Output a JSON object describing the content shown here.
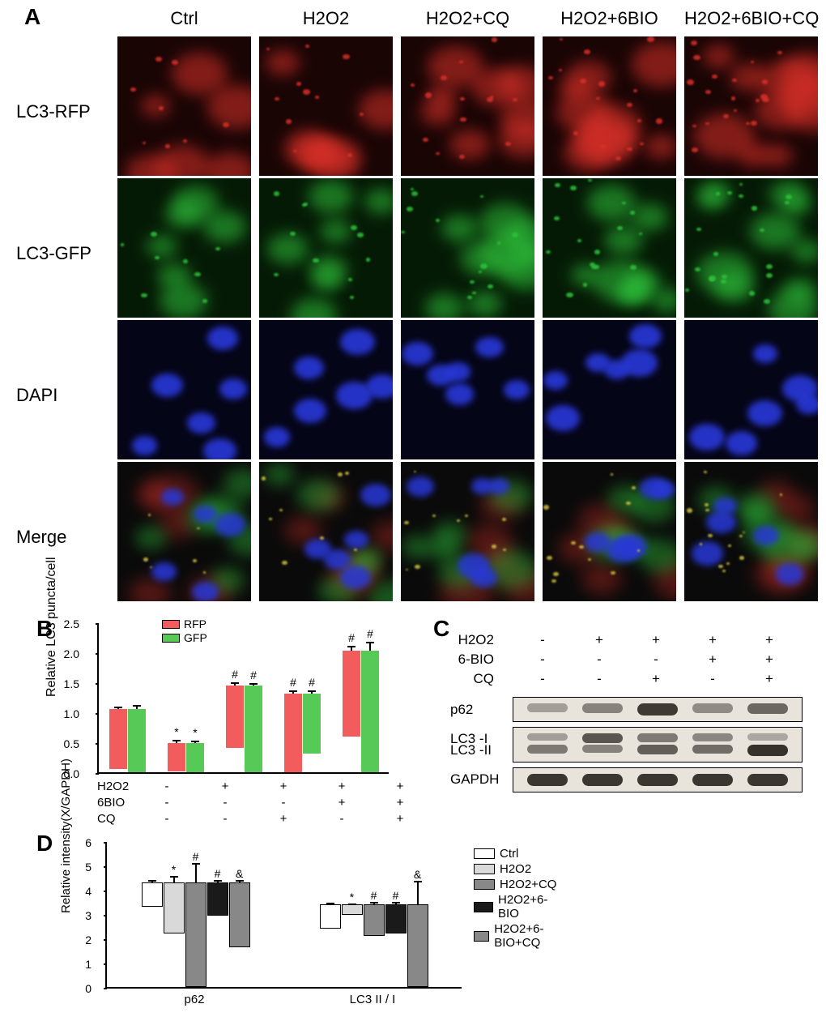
{
  "panelA": {
    "label": "A",
    "columns": [
      "Ctrl",
      "H2O2",
      "H2O2+CQ",
      "H2O2+6BIO",
      "H2O2+6BIO+CQ"
    ],
    "rows": [
      "LC3-RFP",
      "LC3-GFP",
      "DAPI",
      "Merge"
    ],
    "colors": {
      "rfp_stain": "#d83028",
      "gfp_stain": "#2ec23a",
      "dapi_stain": "#2838d8",
      "background_rfp": "#1a0505",
      "background_gfp": "#051a05",
      "background_dapi": "#050518",
      "background_merge": "#0a0a0a"
    }
  },
  "panelB": {
    "label": "B",
    "ylabel": "Relative LC3 puncta/cell",
    "ylim": [
      0,
      2.5
    ],
    "ytick_step": 0.5,
    "yticks": [
      "0.0",
      "0.5",
      "1.0",
      "1.5",
      "2.0",
      "2.5"
    ],
    "series": [
      {
        "name": "RFP",
        "color": "#f25c5c"
      },
      {
        "name": "GFP",
        "color": "#57c957"
      }
    ],
    "groups": [
      {
        "rfp": 1.0,
        "rfp_err": 0.05,
        "rfp_sig": "",
        "gfp": 1.05,
        "gfp_err": 0.07,
        "gfp_sig": ""
      },
      {
        "rfp": 0.46,
        "rfp_err": 0.06,
        "rfp_sig": "*",
        "gfp": 0.48,
        "gfp_err": 0.05,
        "gfp_sig": "*"
      },
      {
        "rfp": 1.03,
        "rfp_err": 0.06,
        "rfp_sig": "#",
        "gfp": 1.44,
        "gfp_err": 0.05,
        "gfp_sig": "#"
      },
      {
        "rfp": 1.31,
        "rfp_err": 0.06,
        "rfp_sig": "#",
        "gfp": 1.0,
        "gfp_err": 0.05,
        "gfp_sig": "#"
      },
      {
        "rfp": 1.44,
        "rfp_err": 0.08,
        "rfp_sig": "#",
        "gfp": 2.03,
        "gfp_err": 0.14,
        "gfp_sig": "#"
      }
    ],
    "xtable": {
      "rows": [
        "H2O2",
        "6BIO",
        "CQ"
      ],
      "cells": [
        [
          "-",
          "+",
          "+",
          "+",
          "+"
        ],
        [
          "-",
          "-",
          "-",
          "+",
          "+"
        ],
        [
          "-",
          "-",
          "+",
          "-",
          "+"
        ]
      ]
    }
  },
  "panelC": {
    "label": "C",
    "header_rows": [
      "H2O2",
      "6-BIO",
      "CQ"
    ],
    "header_cells": [
      [
        "-",
        "+",
        "+",
        "+",
        "+"
      ],
      [
        "-",
        "-",
        "-",
        "+",
        "+"
      ],
      [
        "-",
        "-",
        "+",
        "-",
        "+"
      ]
    ],
    "blots": [
      {
        "label": "p62",
        "intensities": [
          0.35,
          0.5,
          0.9,
          0.45,
          0.65
        ],
        "type": "single"
      },
      {
        "labels": [
          "LC3 -I",
          "LC3 -II"
        ],
        "intensities_top": [
          0.35,
          0.75,
          0.55,
          0.48,
          0.3
        ],
        "intensities_bot": [
          0.55,
          0.5,
          0.7,
          0.62,
          0.95
        ],
        "type": "double"
      },
      {
        "label": "GAPDH",
        "intensities": [
          0.92,
          0.92,
          0.92,
          0.92,
          0.92
        ],
        "type": "single"
      }
    ],
    "band_color_base": "#4a4238",
    "blot_bg": "#e8e4dc"
  },
  "panelD": {
    "label": "D",
    "ylabel": "Relative intensity(X/GAPDH)",
    "ylim": [
      0,
      6
    ],
    "ytick_step": 1,
    "yticks": [
      "0",
      "1",
      "2",
      "3",
      "4",
      "5",
      "6"
    ],
    "legend": [
      {
        "name": "Ctrl",
        "color": "#ffffff"
      },
      {
        "name": "H2O2",
        "color": "#d9d9d9"
      },
      {
        "name": "H2O2+CQ",
        "color": "#888888"
      },
      {
        "name": "H2O2+6-BIO",
        "color": "#1a1a1a"
      },
      {
        "name": "H2O2+6-BIO+CQ",
        "color": "#888888"
      }
    ],
    "groups": [
      {
        "name": "p62",
        "bars": [
          {
            "val": 1.0,
            "err": 0.12,
            "sig": ""
          },
          {
            "val": 2.1,
            "err": 0.3,
            "sig": "*"
          },
          {
            "val": 4.3,
            "err": 0.85,
            "sig": "#"
          },
          {
            "val": 1.35,
            "err": 0.12,
            "sig": "#"
          },
          {
            "val": 2.65,
            "err": 0.15,
            "sig": "&"
          }
        ]
      },
      {
        "name": "LC3 II / I",
        "bars": [
          {
            "val": 1.0,
            "err": 0.1,
            "sig": ""
          },
          {
            "val": 0.42,
            "err": 0.08,
            "sig": "*"
          },
          {
            "val": 1.3,
            "err": 0.12,
            "sig": "#"
          },
          {
            "val": 1.2,
            "err": 0.15,
            "sig": "#"
          },
          {
            "val": 3.4,
            "err": 1.0,
            "sig": "&"
          }
        ]
      }
    ]
  }
}
